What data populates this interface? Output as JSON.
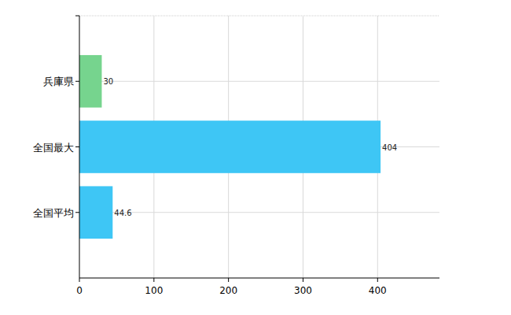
{
  "chart_data": {
    "type": "bar",
    "orientation": "horizontal",
    "categories": [
      "兵庫県",
      "全国最大",
      "全国平均"
    ],
    "values": [
      30,
      404,
      44.6
    ],
    "colors": [
      "#76d48e",
      "#3ec6f5",
      "#3ec6f5"
    ],
    "xlim": [
      0,
      483
    ],
    "xticks": [
      0,
      100,
      200,
      300,
      400
    ],
    "grid": true,
    "data_labels": true
  }
}
